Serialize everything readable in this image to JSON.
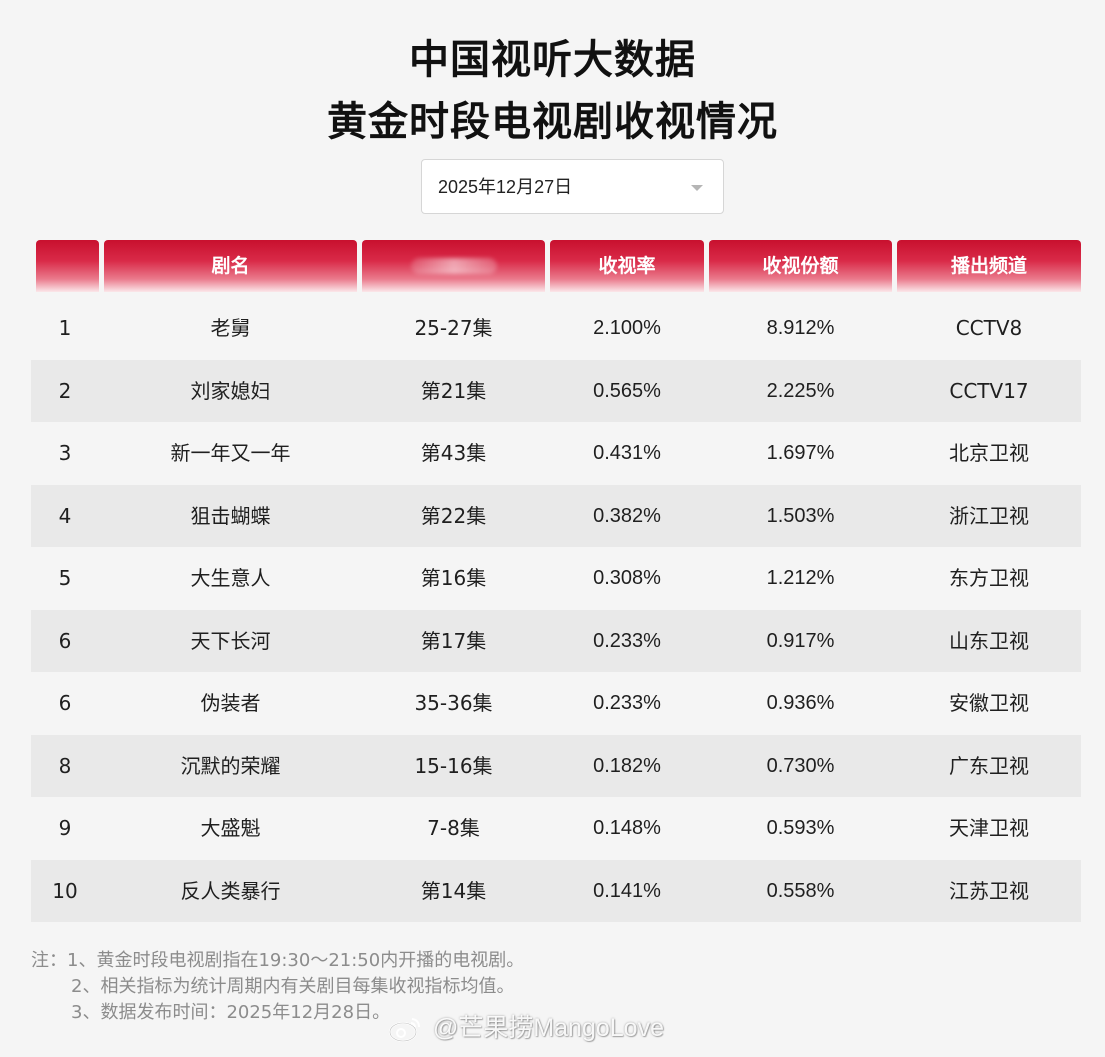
{
  "title": {
    "line1": "中国视听大数据",
    "line2": "黄金时段电视剧收视情况"
  },
  "date_select": {
    "value": "2025年12月27日"
  },
  "table": {
    "headers": [
      "",
      "剧名",
      "",
      "收视率",
      "收视份额",
      "播出频道"
    ],
    "rows": [
      {
        "rank": "1",
        "name": "老舅",
        "episodes": "25-27集",
        "rating": "2.100%",
        "share": "8.912%",
        "channel": "CCTV8"
      },
      {
        "rank": "2",
        "name": "刘家媳妇",
        "episodes": "第21集",
        "rating": "0.565%",
        "share": "2.225%",
        "channel": "CCTV17"
      },
      {
        "rank": "3",
        "name": "新一年又一年",
        "episodes": "第43集",
        "rating": "0.431%",
        "share": "1.697%",
        "channel": "北京卫视"
      },
      {
        "rank": "4",
        "name": "狙击蝴蝶",
        "episodes": "第22集",
        "rating": "0.382%",
        "share": "1.503%",
        "channel": "浙江卫视"
      },
      {
        "rank": "5",
        "name": "大生意人",
        "episodes": "第16集",
        "rating": "0.308%",
        "share": "1.212%",
        "channel": "东方卫视"
      },
      {
        "rank": "6",
        "name": "天下长河",
        "episodes": "第17集",
        "rating": "0.233%",
        "share": "0.917%",
        "channel": "山东卫视"
      },
      {
        "rank": "6",
        "name": "伪装者",
        "episodes": "35-36集",
        "rating": "0.233%",
        "share": "0.936%",
        "channel": "安徽卫视"
      },
      {
        "rank": "8",
        "name": "沉默的荣耀",
        "episodes": "15-16集",
        "rating": "0.182%",
        "share": "0.730%",
        "channel": "广东卫视"
      },
      {
        "rank": "9",
        "name": "大盛魁",
        "episodes": "7-8集",
        "rating": "0.148%",
        "share": "0.593%",
        "channel": "天津卫视"
      },
      {
        "rank": "10",
        "name": "反人类暴行",
        "episodes": "第14集",
        "rating": "0.141%",
        "share": "0.558%",
        "channel": "江苏卫视"
      }
    ]
  },
  "notes": [
    "注：1、黄金时段电视剧指在19:30～21:50内开播的电视剧。",
    "2、相关指标为统计周期内有关剧目每集收视指标均值。",
    "3、数据发布时间：2025年12月28日。"
  ],
  "watermark": {
    "text": "@芒果捞MangoLove"
  },
  "colors": {
    "header_red": "#c8102e",
    "row_alt": "#e9e9e9",
    "background": "#f5f5f5"
  }
}
